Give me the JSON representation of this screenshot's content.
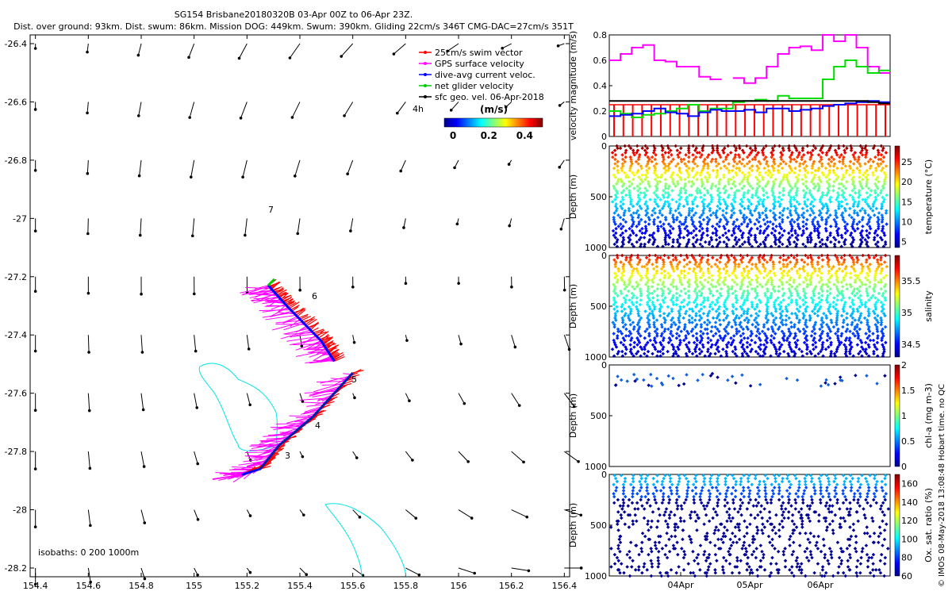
{
  "header": {
    "title_line1": "SG154 Brisbane20180320B 03-Apr 00Z to 06-Apr 23Z.",
    "title_line2": "Dist. over ground: 93km. Dist. swum: 86km. Mission DOG: 449km. Swum: 390km. Gliding 22cm/s 346T CMG-DAC=27cm/s 351T"
  },
  "chart_data": [
    {
      "type": "scatter",
      "name": "map",
      "xticks": [
        "154.4",
        "154.6",
        "154.8",
        "155",
        "155.2",
        "155.4",
        "155.6",
        "155.8",
        "156",
        "156.2",
        "156.4"
      ],
      "yticks": [
        "-26.4",
        "-26.6",
        "-26.8",
        "-27",
        "-27.2",
        "-27.4",
        "-27.6",
        "-27.8",
        "-28",
        "-28.2"
      ],
      "xlim": [
        154.38,
        156.42
      ],
      "ylim": [
        -28.23,
        -26.37
      ],
      "legend": {
        "items": [
          {
            "label": "25cm/s swim vector",
            "color": "#ff0000"
          },
          {
            "label": "GPS surface velocity",
            "color": "#ff00ff"
          },
          {
            "label": "dive-avg current veloc.",
            "color": "#0000ff"
          },
          {
            "label": "net glider velocity",
            "color": "#00cc00"
          },
          {
            "label": "sfc geo. vel. 06-Apr-2018",
            "color": "#000000"
          }
        ],
        "time_marker": "4h",
        "colorbar_unit": "(m/s)",
        "colorbar_ticks": [
          "0",
          "0.2",
          "0.4"
        ]
      },
      "track_labels": [
        "6",
        "5",
        "4",
        "3",
        "7"
      ],
      "isobath_label": "isobaths: 0   200   1000m",
      "track": [
        [
          155.6,
          -27.53
        ],
        [
          155.45,
          -27.68
        ],
        [
          155.32,
          -27.78
        ],
        [
          155.25,
          -27.86
        ],
        [
          155.18,
          -27.88
        ],
        [
          155.53,
          -27.49
        ],
        [
          155.48,
          -27.42
        ],
        [
          155.35,
          -27.3
        ],
        [
          155.28,
          -27.23
        ]
      ]
    },
    {
      "type": "line",
      "name": "velocity",
      "ylabel": "velocity magnitude (m/s)",
      "ylim": [
        0,
        0.8
      ],
      "yticks": [
        "0",
        "0.2",
        "0.4",
        "0.6",
        "0.8"
      ],
      "series": [
        {
          "color": "#ff00ff",
          "values": [
            0.6,
            0.65,
            0.7,
            0.72,
            0.6,
            0.59,
            0.55,
            0.55,
            0.47,
            0.45,
            null,
            0.46,
            0.42,
            0.46,
            0.55,
            0.65,
            0.7,
            0.71,
            0.68,
            0.8,
            0.75,
            0.8,
            0.7,
            0.55,
            0.5
          ]
        },
        {
          "color": "#00dd00",
          "values": [
            0.2,
            0.18,
            0.15,
            0.17,
            0.18,
            0.2,
            0.22,
            0.25,
            0.2,
            0.22,
            0.22,
            0.27,
            0.28,
            0.29,
            0.28,
            0.32,
            0.3,
            0.3,
            0.3,
            0.45,
            0.55,
            0.6,
            0.55,
            0.5,
            0.52
          ]
        },
        {
          "color": "#0000ff",
          "values": [
            0.16,
            0.17,
            0.18,
            0.2,
            0.22,
            0.19,
            0.18,
            0.16,
            0.19,
            0.21,
            0.2,
            0.2,
            0.21,
            0.19,
            0.22,
            0.22,
            0.2,
            0.21,
            0.22,
            0.24,
            0.25,
            0.26,
            0.27,
            0.28,
            0.27
          ]
        },
        {
          "color": "#000000",
          "values": [
            0.28,
            0.28,
            0.28,
            0.28,
            0.28,
            0.28,
            0.28,
            0.28,
            0.28,
            0.28,
            0.28,
            0.28,
            0.28,
            0.28,
            0.28,
            0.28,
            0.28,
            0.28,
            0.28,
            0.28,
            0.28,
            0.28,
            0.28,
            0.27,
            0.26
          ]
        }
      ],
      "red_bar_value": 0.25,
      "red_bar_count": 30
    },
    {
      "type": "scatter",
      "name": "temperature",
      "ylabel": "Depth (m)",
      "yticks": [
        "0",
        "500",
        "1000"
      ],
      "colorbar_label": "temperature (°C)",
      "colorbar_ticks": [
        "5",
        "10",
        "15",
        "20",
        "25"
      ],
      "colormap": "jet",
      "dive_count": 35
    },
    {
      "type": "scatter",
      "name": "salinity",
      "ylabel": "Depth (m)",
      "yticks": [
        "0",
        "500",
        "1000"
      ],
      "colorbar_label": "salinity",
      "colorbar_ticks": [
        "34.5",
        "35",
        "35.5"
      ],
      "colormap": "jet",
      "dive_count": 35
    },
    {
      "type": "scatter",
      "name": "chlorophyll",
      "ylabel": "Depth (m)",
      "yticks": [
        "0",
        "500",
        "1000"
      ],
      "colorbar_label": "chl-a (mg m-3)",
      "colorbar_ticks": [
        "0",
        "0.5",
        "1",
        "1.5",
        "2"
      ],
      "colormap": "jet"
    },
    {
      "type": "scatter",
      "name": "oxygen",
      "ylabel": "Depth (m)",
      "yticks": [
        "0",
        "500",
        "1000"
      ],
      "colorbar_label": "Ox. sat. ratio (%)",
      "colorbar_ticks": [
        "60",
        "80",
        "100",
        "120",
        "140",
        "160"
      ],
      "colormap": "jet",
      "xticks": [
        "04Apr",
        "05Apr",
        "06Apr"
      ]
    }
  ],
  "footer": {
    "credit": "© IMOS 08-May-2018 13:08:48 Hobart time. no QC"
  }
}
